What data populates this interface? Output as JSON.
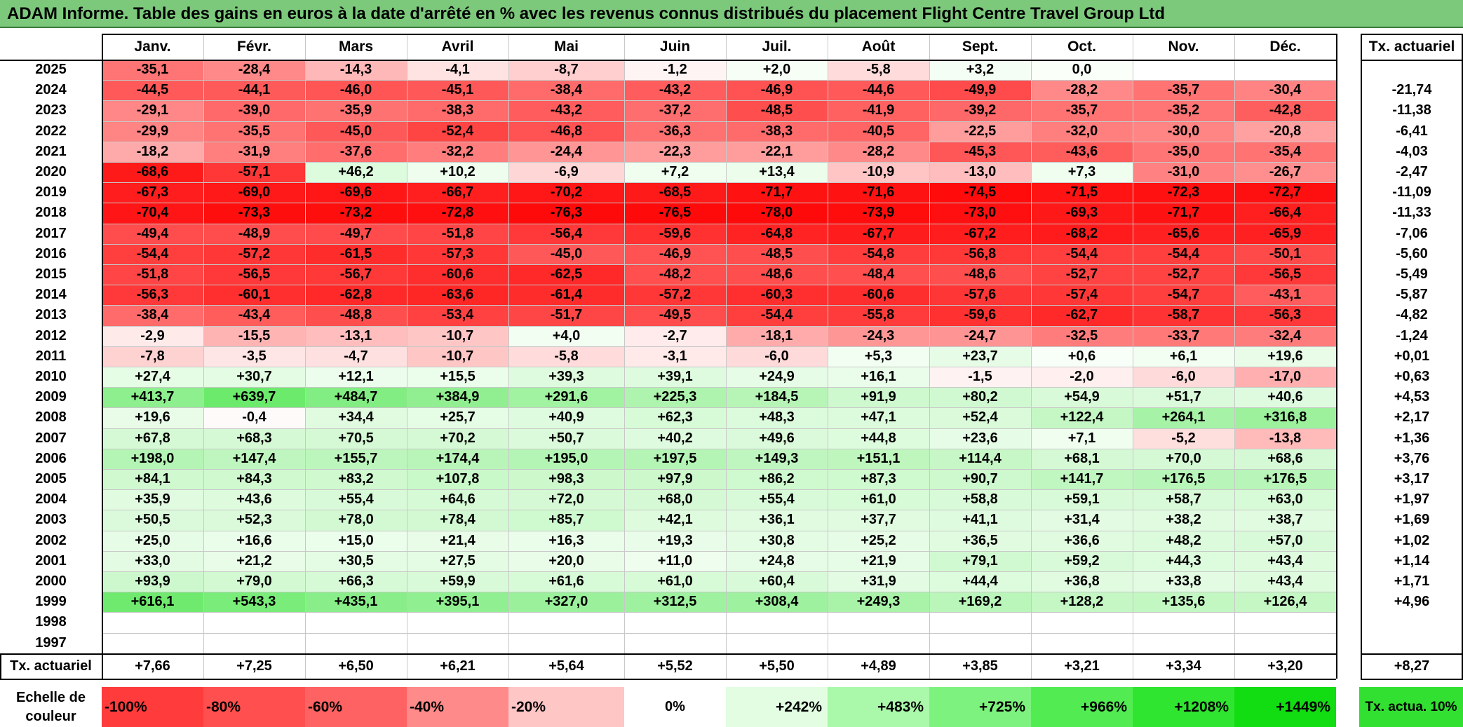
{
  "title": "ADAM Informe. Table des gains en euros à la date d'arrêté en % avec les revenus connus distribués du placement Flight Centre Travel Group Ltd",
  "chart_data": {
    "type": "table",
    "months": [
      "Janv.",
      "Févr.",
      "Mars",
      "Avril",
      "Mai",
      "Juin",
      "Juil.",
      "Août",
      "Sept.",
      "Oct.",
      "Nov.",
      "Déc."
    ],
    "rate_header": "Tx. actuariel",
    "years": [
      "2025",
      "2024",
      "2023",
      "2022",
      "2021",
      "2020",
      "2019",
      "2018",
      "2017",
      "2016",
      "2015",
      "2014",
      "2013",
      "2012",
      "2011",
      "2010",
      "2009",
      "2008",
      "2007",
      "2006",
      "2005",
      "2004",
      "2003",
      "2002",
      "2001",
      "2000",
      "1999",
      "1998",
      "1997"
    ],
    "values": [
      [
        "-35,1",
        "-28,4",
        "-14,3",
        "-4,1",
        "-8,7",
        "-1,2",
        "+2,0",
        "-5,8",
        "+3,2",
        "0,0",
        "",
        ""
      ],
      [
        "-44,5",
        "-44,1",
        "-46,0",
        "-45,1",
        "-38,4",
        "-43,2",
        "-46,9",
        "-44,6",
        "-49,9",
        "-28,2",
        "-35,7",
        "-30,4"
      ],
      [
        "-29,1",
        "-39,0",
        "-35,9",
        "-38,3",
        "-43,2",
        "-37,2",
        "-48,5",
        "-41,9",
        "-39,2",
        "-35,7",
        "-35,2",
        "-42,8"
      ],
      [
        "-29,9",
        "-35,5",
        "-45,0",
        "-52,4",
        "-46,8",
        "-36,3",
        "-38,3",
        "-40,5",
        "-22,5",
        "-32,0",
        "-30,0",
        "-20,8"
      ],
      [
        "-18,2",
        "-31,9",
        "-37,6",
        "-32,2",
        "-24,4",
        "-22,3",
        "-22,1",
        "-28,2",
        "-45,3",
        "-43,6",
        "-35,0",
        "-35,4"
      ],
      [
        "-68,6",
        "-57,1",
        "+46,2",
        "+10,2",
        "-6,9",
        "+7,2",
        "+13,4",
        "-10,9",
        "-13,0",
        "+7,3",
        "-31,0",
        "-26,7"
      ],
      [
        "-67,3",
        "-69,0",
        "-69,6",
        "-66,7",
        "-70,2",
        "-68,5",
        "-71,7",
        "-71,6",
        "-74,5",
        "-71,5",
        "-72,3",
        "-72,7"
      ],
      [
        "-70,4",
        "-73,3",
        "-73,2",
        "-72,8",
        "-76,3",
        "-76,5",
        "-78,0",
        "-73,9",
        "-73,0",
        "-69,3",
        "-71,7",
        "-66,4"
      ],
      [
        "-49,4",
        "-48,9",
        "-49,7",
        "-51,8",
        "-56,4",
        "-59,6",
        "-64,8",
        "-67,7",
        "-67,2",
        "-68,2",
        "-65,6",
        "-65,9"
      ],
      [
        "-54,4",
        "-57,2",
        "-61,5",
        "-57,3",
        "-45,0",
        "-46,9",
        "-48,5",
        "-54,8",
        "-56,8",
        "-54,4",
        "-54,4",
        "-50,1"
      ],
      [
        "-51,8",
        "-56,5",
        "-56,7",
        "-60,6",
        "-62,5",
        "-48,2",
        "-48,6",
        "-48,4",
        "-48,6",
        "-52,7",
        "-52,7",
        "-56,5"
      ],
      [
        "-56,3",
        "-60,1",
        "-62,8",
        "-63,6",
        "-61,4",
        "-57,2",
        "-60,3",
        "-60,6",
        "-57,6",
        "-57,4",
        "-54,7",
        "-43,1"
      ],
      [
        "-38,4",
        "-43,4",
        "-48,8",
        "-53,4",
        "-51,7",
        "-49,5",
        "-54,4",
        "-55,8",
        "-59,6",
        "-62,7",
        "-58,7",
        "-56,3"
      ],
      [
        "-2,9",
        "-15,5",
        "-13,1",
        "-10,7",
        "+4,0",
        "-2,7",
        "-18,1",
        "-24,3",
        "-24,7",
        "-32,5",
        "-33,7",
        "-32,4"
      ],
      [
        "-7,8",
        "-3,5",
        "-4,7",
        "-10,7",
        "-5,8",
        "-3,1",
        "-6,0",
        "+5,3",
        "+23,7",
        "+0,6",
        "+6,1",
        "+19,6"
      ],
      [
        "+27,4",
        "+30,7",
        "+12,1",
        "+15,5",
        "+39,3",
        "+39,1",
        "+24,9",
        "+16,1",
        "-1,5",
        "-2,0",
        "-6,0",
        "-17,0"
      ],
      [
        "+413,7",
        "+639,7",
        "+484,7",
        "+384,9",
        "+291,6",
        "+225,3",
        "+184,5",
        "+91,9",
        "+80,2",
        "+54,9",
        "+51,7",
        "+40,6"
      ],
      [
        "+19,6",
        "-0,4",
        "+34,4",
        "+25,7",
        "+40,9",
        "+62,3",
        "+48,3",
        "+47,1",
        "+52,4",
        "+122,4",
        "+264,1",
        "+316,8"
      ],
      [
        "+67,8",
        "+68,3",
        "+70,5",
        "+70,2",
        "+50,7",
        "+40,2",
        "+49,6",
        "+44,8",
        "+23,6",
        "+7,1",
        "-5,2",
        "-13,8"
      ],
      [
        "+198,0",
        "+147,4",
        "+155,7",
        "+174,4",
        "+195,0",
        "+197,5",
        "+149,3",
        "+151,1",
        "+114,4",
        "+68,1",
        "+70,0",
        "+68,6"
      ],
      [
        "+84,1",
        "+84,3",
        "+83,2",
        "+107,8",
        "+98,3",
        "+97,9",
        "+86,2",
        "+87,3",
        "+90,7",
        "+141,7",
        "+176,5",
        "+176,5"
      ],
      [
        "+35,9",
        "+43,6",
        "+55,4",
        "+64,6",
        "+72,0",
        "+68,0",
        "+55,4",
        "+61,0",
        "+58,8",
        "+59,1",
        "+58,7",
        "+63,0"
      ],
      [
        "+50,5",
        "+52,3",
        "+78,0",
        "+78,4",
        "+85,7",
        "+42,1",
        "+36,1",
        "+37,7",
        "+41,1",
        "+31,4",
        "+38,2",
        "+38,7"
      ],
      [
        "+25,0",
        "+16,6",
        "+15,0",
        "+21,4",
        "+16,3",
        "+19,3",
        "+30,8",
        "+25,2",
        "+36,5",
        "+36,6",
        "+48,2",
        "+57,0"
      ],
      [
        "+33,0",
        "+21,2",
        "+30,5",
        "+27,5",
        "+20,0",
        "+11,0",
        "+24,8",
        "+21,9",
        "+79,1",
        "+59,2",
        "+44,3",
        "+43,4"
      ],
      [
        "+93,9",
        "+79,0",
        "+66,3",
        "+59,9",
        "+61,6",
        "+61,0",
        "+60,4",
        "+31,9",
        "+44,4",
        "+36,8",
        "+33,8",
        "+43,4"
      ],
      [
        "+616,1",
        "+543,3",
        "+435,1",
        "+395,1",
        "+327,0",
        "+312,5",
        "+308,4",
        "+249,3",
        "+169,2",
        "+128,2",
        "+135,6",
        "+126,4"
      ],
      [
        "",
        "",
        "",
        "",
        "",
        "",
        "",
        "",
        "",
        "",
        "",
        ""
      ],
      [
        "",
        "",
        "",
        "",
        "",
        "",
        "",
        "",
        "",
        "",
        "",
        ""
      ]
    ],
    "row_rates": [
      "",
      "-21,74",
      "-11,38",
      "-6,41",
      "-4,03",
      "-2,47",
      "-11,09",
      "-11,33",
      "-7,06",
      "-5,60",
      "-5,49",
      "-5,87",
      "-4,82",
      "-1,24",
      "+0,01",
      "+0,63",
      "+4,53",
      "+2,17",
      "+1,36",
      "+3,76",
      "+3,17",
      "+1,97",
      "+1,69",
      "+1,02",
      "+1,14",
      "+1,71",
      "+4,96",
      "",
      ""
    ],
    "footer_label": "Tx. actuariel",
    "column_rates": [
      "+7,66",
      "+7,25",
      "+6,50",
      "+6,21",
      "+5,64",
      "+5,52",
      "+5,50",
      "+4,89",
      "+3,85",
      "+3,21",
      "+3,34",
      "+3,20"
    ],
    "overall_rate": "+8,27",
    "scale_label": "Echelle de couleur",
    "scale": [
      "-100%",
      "-80%",
      "-60%",
      "-40%",
      "-20%",
      "0%",
      "+242%",
      "+483%",
      "+725%",
      "+966%",
      "+1208%",
      "+1449%"
    ],
    "scale_colors": [
      "#ff3b3b",
      "#ff4f4f",
      "#ff6262",
      "#ff8a8a",
      "#ffc6c6",
      "#ffffff",
      "#e2fde2",
      "#aaf8aa",
      "#7ef27e",
      "#52ec52",
      "#2fe52f",
      "#12dc12"
    ],
    "rate_legend": "Tx. actua. 10%",
    "rate_legend_color": "#31e031"
  }
}
